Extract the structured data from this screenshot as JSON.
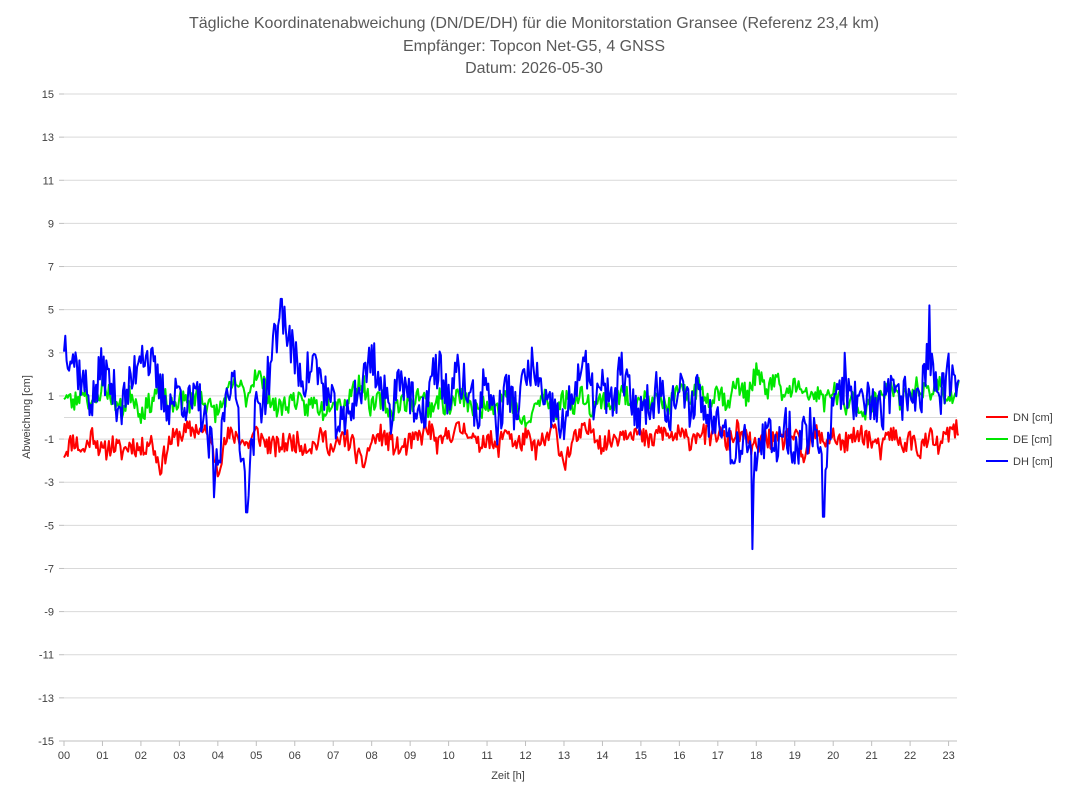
{
  "chart_data": {
    "type": "line",
    "title_lines": [
      "Tägliche Koordinatenabweichung (DN/DE/DH) für die Monitorstation Gransee (Referenz 23,4 km)",
      "Empfänger: Topcon Net-G5, 4 GNSS",
      "Datum: 2026-05-30"
    ],
    "xlabel": "Zeit [h]",
    "ylabel": "Abweichung [cm]",
    "xlim": [
      0,
      23.25
    ],
    "ylim": [
      -15,
      15
    ],
    "x_tick_labels": [
      "00",
      "01",
      "02",
      "03",
      "04",
      "05",
      "06",
      "07",
      "08",
      "09",
      "10",
      "11",
      "12",
      "13",
      "14",
      "15",
      "16",
      "17",
      "18",
      "19",
      "20",
      "21",
      "22",
      "23"
    ],
    "y_tick_labels": [
      "15",
      "13",
      "11",
      "9",
      "7",
      "5",
      "3",
      "1",
      "-1",
      "-3",
      "-5",
      "-7",
      "-9",
      "-11",
      "-13",
      "-15"
    ],
    "y_ticks": [
      15,
      13,
      11,
      9,
      7,
      5,
      3,
      1,
      -1,
      -3,
      -5,
      -7,
      -9,
      -11,
      -13,
      -15
    ],
    "grid": "horizontal",
    "legend_position": "right",
    "sample_interval_min": 2,
    "series": [
      {
        "name": "DN [cm]",
        "color": "#ff0000",
        "points": [
          [
            0,
            -1.6
          ],
          [
            0.25,
            -1.0
          ],
          [
            0.5,
            -1.6
          ],
          [
            0.75,
            -0.7
          ],
          [
            1,
            -1.7
          ],
          [
            1.25,
            -1.2
          ],
          [
            1.5,
            -1.6
          ],
          [
            1.75,
            -1.2
          ],
          [
            2,
            -1.5
          ],
          [
            2.25,
            -1.0
          ],
          [
            2.5,
            -2.3
          ],
          [
            2.75,
            -1.1
          ],
          [
            3,
            -0.8
          ],
          [
            3.25,
            -0.6
          ],
          [
            3.5,
            -0.5
          ],
          [
            3.75,
            -0.9
          ],
          [
            4,
            -2.3
          ],
          [
            4.25,
            -0.9
          ],
          [
            4.5,
            -0.8
          ],
          [
            4.75,
            -1.3
          ],
          [
            5,
            -0.7
          ],
          [
            5.25,
            -1.2
          ],
          [
            5.5,
            -1.4
          ],
          [
            5.75,
            -1.2
          ],
          [
            6,
            -1.1
          ],
          [
            6.25,
            -1.3
          ],
          [
            6.5,
            -1.3
          ],
          [
            6.75,
            -0.8
          ],
          [
            7,
            -1.6
          ],
          [
            7.25,
            -0.9
          ],
          [
            7.5,
            -1.2
          ],
          [
            7.75,
            -2.3
          ],
          [
            8,
            -1.1
          ],
          [
            8.25,
            -0.8
          ],
          [
            8.5,
            -1.2
          ],
          [
            8.75,
            -1.5
          ],
          [
            9,
            -1.2
          ],
          [
            9.25,
            -0.9
          ],
          [
            9.5,
            -0.5
          ],
          [
            9.75,
            -1.4
          ],
          [
            10,
            -0.7
          ],
          [
            10.25,
            -0.6
          ],
          [
            10.5,
            -0.5
          ],
          [
            10.75,
            -1.4
          ],
          [
            11,
            -0.8
          ],
          [
            11.25,
            -1.6
          ],
          [
            11.5,
            -0.4
          ],
          [
            11.75,
            -1.4
          ],
          [
            12,
            -0.9
          ],
          [
            12.25,
            -1.5
          ],
          [
            12.5,
            -1.1
          ],
          [
            12.75,
            -0.5
          ],
          [
            13,
            -2.1
          ],
          [
            13.25,
            -1.1
          ],
          [
            13.5,
            -0.7
          ],
          [
            13.75,
            -0.5
          ],
          [
            14,
            -1.3
          ],
          [
            14.25,
            -1.0
          ],
          [
            14.5,
            -0.7
          ],
          [
            14.75,
            -0.5
          ],
          [
            15,
            -0.9
          ],
          [
            15.25,
            -1.2
          ],
          [
            15.5,
            -0.6
          ],
          [
            15.75,
            -0.9
          ],
          [
            16,
            -0.8
          ],
          [
            16.25,
            -1.1
          ],
          [
            16.5,
            -0.6
          ],
          [
            16.75,
            -0.9
          ],
          [
            17,
            -0.7
          ],
          [
            17.25,
            -1.2
          ],
          [
            17.5,
            -0.6
          ],
          [
            17.75,
            -1.0
          ],
          [
            18,
            -1.5
          ],
          [
            18.25,
            -0.9
          ],
          [
            18.5,
            -1.2
          ],
          [
            18.75,
            -1.0
          ],
          [
            19,
            -0.8
          ],
          [
            19.25,
            -2.0
          ],
          [
            19.5,
            -0.7
          ],
          [
            19.75,
            -1.1
          ],
          [
            20,
            -0.8
          ],
          [
            20.25,
            -1.3
          ],
          [
            20.5,
            -1.0
          ],
          [
            20.75,
            -0.7
          ],
          [
            21,
            -1.1
          ],
          [
            21.25,
            -1.6
          ],
          [
            21.5,
            -0.6
          ],
          [
            21.75,
            -1.3
          ],
          [
            22,
            -1.0
          ],
          [
            22.25,
            -1.5
          ],
          [
            22.5,
            -0.9
          ],
          [
            22.75,
            -1.4
          ],
          [
            23,
            -0.7
          ],
          [
            23.25,
            -0.6
          ]
        ]
      },
      {
        "name": "DE [cm]",
        "color": "#00e600",
        "points": [
          [
            0,
            1.1
          ],
          [
            0.25,
            0.6
          ],
          [
            0.5,
            1.4
          ],
          [
            0.75,
            0.4
          ],
          [
            1,
            1.5
          ],
          [
            1.25,
            1.0
          ],
          [
            1.5,
            0.3
          ],
          [
            1.75,
            1.2
          ],
          [
            2,
            0.2
          ],
          [
            2.25,
            0.7
          ],
          [
            2.5,
            1.5
          ],
          [
            2.75,
            0.3
          ],
          [
            3,
            0.9
          ],
          [
            3.25,
            0.6
          ],
          [
            3.5,
            1.3
          ],
          [
            3.75,
            0.5
          ],
          [
            4,
            0.2
          ],
          [
            4.25,
            1.1
          ],
          [
            4.5,
            1.6
          ],
          [
            4.75,
            0.9
          ],
          [
            5,
            2.2
          ],
          [
            5.25,
            1.3
          ],
          [
            5.5,
            0.4
          ],
          [
            5.75,
            0.6
          ],
          [
            6,
            0.9
          ],
          [
            6.25,
            0.4
          ],
          [
            6.5,
            0.7
          ],
          [
            6.75,
            0.3
          ],
          [
            7,
            1.0
          ],
          [
            7.25,
            0.5
          ],
          [
            7.5,
            1.3
          ],
          [
            7.75,
            1.7
          ],
          [
            8,
            0.4
          ],
          [
            8.25,
            0.9
          ],
          [
            8.5,
            0.2
          ],
          [
            8.75,
            0.8
          ],
          [
            9,
            0.6
          ],
          [
            9.25,
            1.2
          ],
          [
            9.5,
            0.4
          ],
          [
            9.75,
            0.9
          ],
          [
            10,
            0.3
          ],
          [
            10.25,
            1.1
          ],
          [
            10.5,
            0.7
          ],
          [
            10.75,
            0.2
          ],
          [
            11,
            0.8
          ],
          [
            11.25,
            0.5
          ],
          [
            11.5,
            1.2
          ],
          [
            11.75,
            0.4
          ],
          [
            12,
            -0.5
          ],
          [
            12.25,
            0.5
          ],
          [
            12.5,
            1.0
          ],
          [
            12.75,
            0.2
          ],
          [
            13,
            0.9
          ],
          [
            13.25,
            0.6
          ],
          [
            13.5,
            1.1
          ],
          [
            13.75,
            0.4
          ],
          [
            14,
            0.9
          ],
          [
            14.25,
            0.5
          ],
          [
            14.5,
            1.2
          ],
          [
            14.75,
            0.7
          ],
          [
            15,
            1.0
          ],
          [
            15.25,
            0.6
          ],
          [
            15.5,
            0.8
          ],
          [
            15.75,
            0.5
          ],
          [
            16,
            1.2
          ],
          [
            16.25,
            0.9
          ],
          [
            16.5,
            1.5
          ],
          [
            16.75,
            0.8
          ],
          [
            17,
            1.3
          ],
          [
            17.25,
            0.7
          ],
          [
            17.5,
            1.6
          ],
          [
            17.75,
            1.0
          ],
          [
            18,
            2.1
          ],
          [
            18.25,
            1.2
          ],
          [
            18.5,
            1.8
          ],
          [
            18.75,
            0.9
          ],
          [
            19,
            1.6
          ],
          [
            19.25,
            0.9
          ],
          [
            19.5,
            1.2
          ],
          [
            19.75,
            0.7
          ],
          [
            20,
            1.3
          ],
          [
            20.25,
            0.5
          ],
          [
            20.5,
            0.8
          ],
          [
            20.75,
            0.3
          ],
          [
            21,
            0.6
          ],
          [
            21.25,
            1.2
          ],
          [
            21.5,
            1.5
          ],
          [
            21.75,
            0.6
          ],
          [
            22,
            1.1
          ],
          [
            22.25,
            1.5
          ],
          [
            22.5,
            0.9
          ],
          [
            22.75,
            1.6
          ],
          [
            23,
            0.8
          ],
          [
            23.25,
            1.4
          ]
        ]
      },
      {
        "name": "DH [cm]",
        "color": "#0000ff",
        "points": [
          [
            0,
            3.6
          ],
          [
            0.25,
            2.8
          ],
          [
            0.5,
            1.6
          ],
          [
            0.75,
            0.7
          ],
          [
            1,
            2.4
          ],
          [
            1.25,
            1.3
          ],
          [
            1.5,
            0.5
          ],
          [
            1.75,
            1.5
          ],
          [
            2,
            3.4
          ],
          [
            2.25,
            2.5
          ],
          [
            2.5,
            1.2
          ],
          [
            2.75,
            0.6
          ],
          [
            3,
            1.3
          ],
          [
            3.25,
            0.5
          ],
          [
            3.5,
            0.9
          ],
          [
            3.75,
            -1.1
          ],
          [
            4,
            -2.6
          ],
          [
            4.25,
            2.0
          ],
          [
            4.5,
            0.8
          ],
          [
            4.75,
            -3.9
          ],
          [
            5,
            0.4
          ],
          [
            5.25,
            1.2
          ],
          [
            5.5,
            3.8
          ],
          [
            5.75,
            4.4
          ],
          [
            6,
            2.6
          ],
          [
            6.25,
            1.8
          ],
          [
            6.5,
            2.6
          ],
          [
            6.75,
            1.4
          ],
          [
            7,
            0.3
          ],
          [
            7.25,
            -0.6
          ],
          [
            7.5,
            0.8
          ],
          [
            7.75,
            1.4
          ],
          [
            8,
            3.1
          ],
          [
            8.25,
            1.2
          ],
          [
            8.5,
            0.3
          ],
          [
            8.75,
            2.3
          ],
          [
            9,
            1.0
          ],
          [
            9.25,
            -0.6
          ],
          [
            9.5,
            1.4
          ],
          [
            9.75,
            2.4
          ],
          [
            10,
            0.8
          ],
          [
            10.25,
            2.0
          ],
          [
            10.5,
            1.2
          ],
          [
            10.75,
            0.2
          ],
          [
            11,
            1.8
          ],
          [
            11.25,
            -0.4
          ],
          [
            11.5,
            1.4
          ],
          [
            11.75,
            0.3
          ],
          [
            12,
            1.8
          ],
          [
            12.25,
            2.4
          ],
          [
            12.5,
            0.2
          ],
          [
            12.75,
            0.4
          ],
          [
            13,
            -0.7
          ],
          [
            13.25,
            1.4
          ],
          [
            13.5,
            2.5
          ],
          [
            13.75,
            0.9
          ],
          [
            14,
            1.3
          ],
          [
            14.25,
            0.5
          ],
          [
            14.5,
            2.2
          ],
          [
            14.75,
            0.7
          ],
          [
            15,
            0.2
          ],
          [
            15.25,
            0.9
          ],
          [
            15.5,
            1.3
          ],
          [
            15.75,
            0.4
          ],
          [
            16,
            1.2
          ],
          [
            16.25,
            0.5
          ],
          [
            16.5,
            1.4
          ],
          [
            16.75,
            -0.3
          ],
          [
            17,
            0.6
          ],
          [
            17.25,
            -0.9
          ],
          [
            17.5,
            -1.5
          ],
          [
            17.75,
            -0.4
          ],
          [
            18,
            -2.5
          ],
          [
            18.25,
            -0.8
          ],
          [
            18.5,
            -1.2
          ],
          [
            18.75,
            -0.2
          ],
          [
            19,
            -1.4
          ],
          [
            19.25,
            -0.8
          ],
          [
            19.5,
            -0.3
          ],
          [
            19.75,
            -2.2
          ],
          [
            20,
            0.4
          ],
          [
            20.25,
            1.6
          ],
          [
            20.5,
            0.7
          ],
          [
            20.75,
            0.2
          ],
          [
            21,
            0.9
          ],
          [
            21.25,
            0.3
          ],
          [
            21.5,
            1.1
          ],
          [
            21.75,
            0.6
          ],
          [
            22,
            1.4
          ],
          [
            22.25,
            0.8
          ],
          [
            22.5,
            3.2
          ],
          [
            22.75,
            0.7
          ],
          [
            23,
            1.9
          ],
          [
            23.25,
            1.0
          ]
        ],
        "spikes": [
          [
            5.65,
            5.5
          ],
          [
            17.9,
            -6.1
          ],
          [
            19.75,
            -4.6
          ],
          [
            22.5,
            5.2
          ],
          [
            4.75,
            -4.4
          ],
          [
            3.9,
            -3.7
          ],
          [
            20.3,
            3.0
          ]
        ]
      }
    ]
  }
}
